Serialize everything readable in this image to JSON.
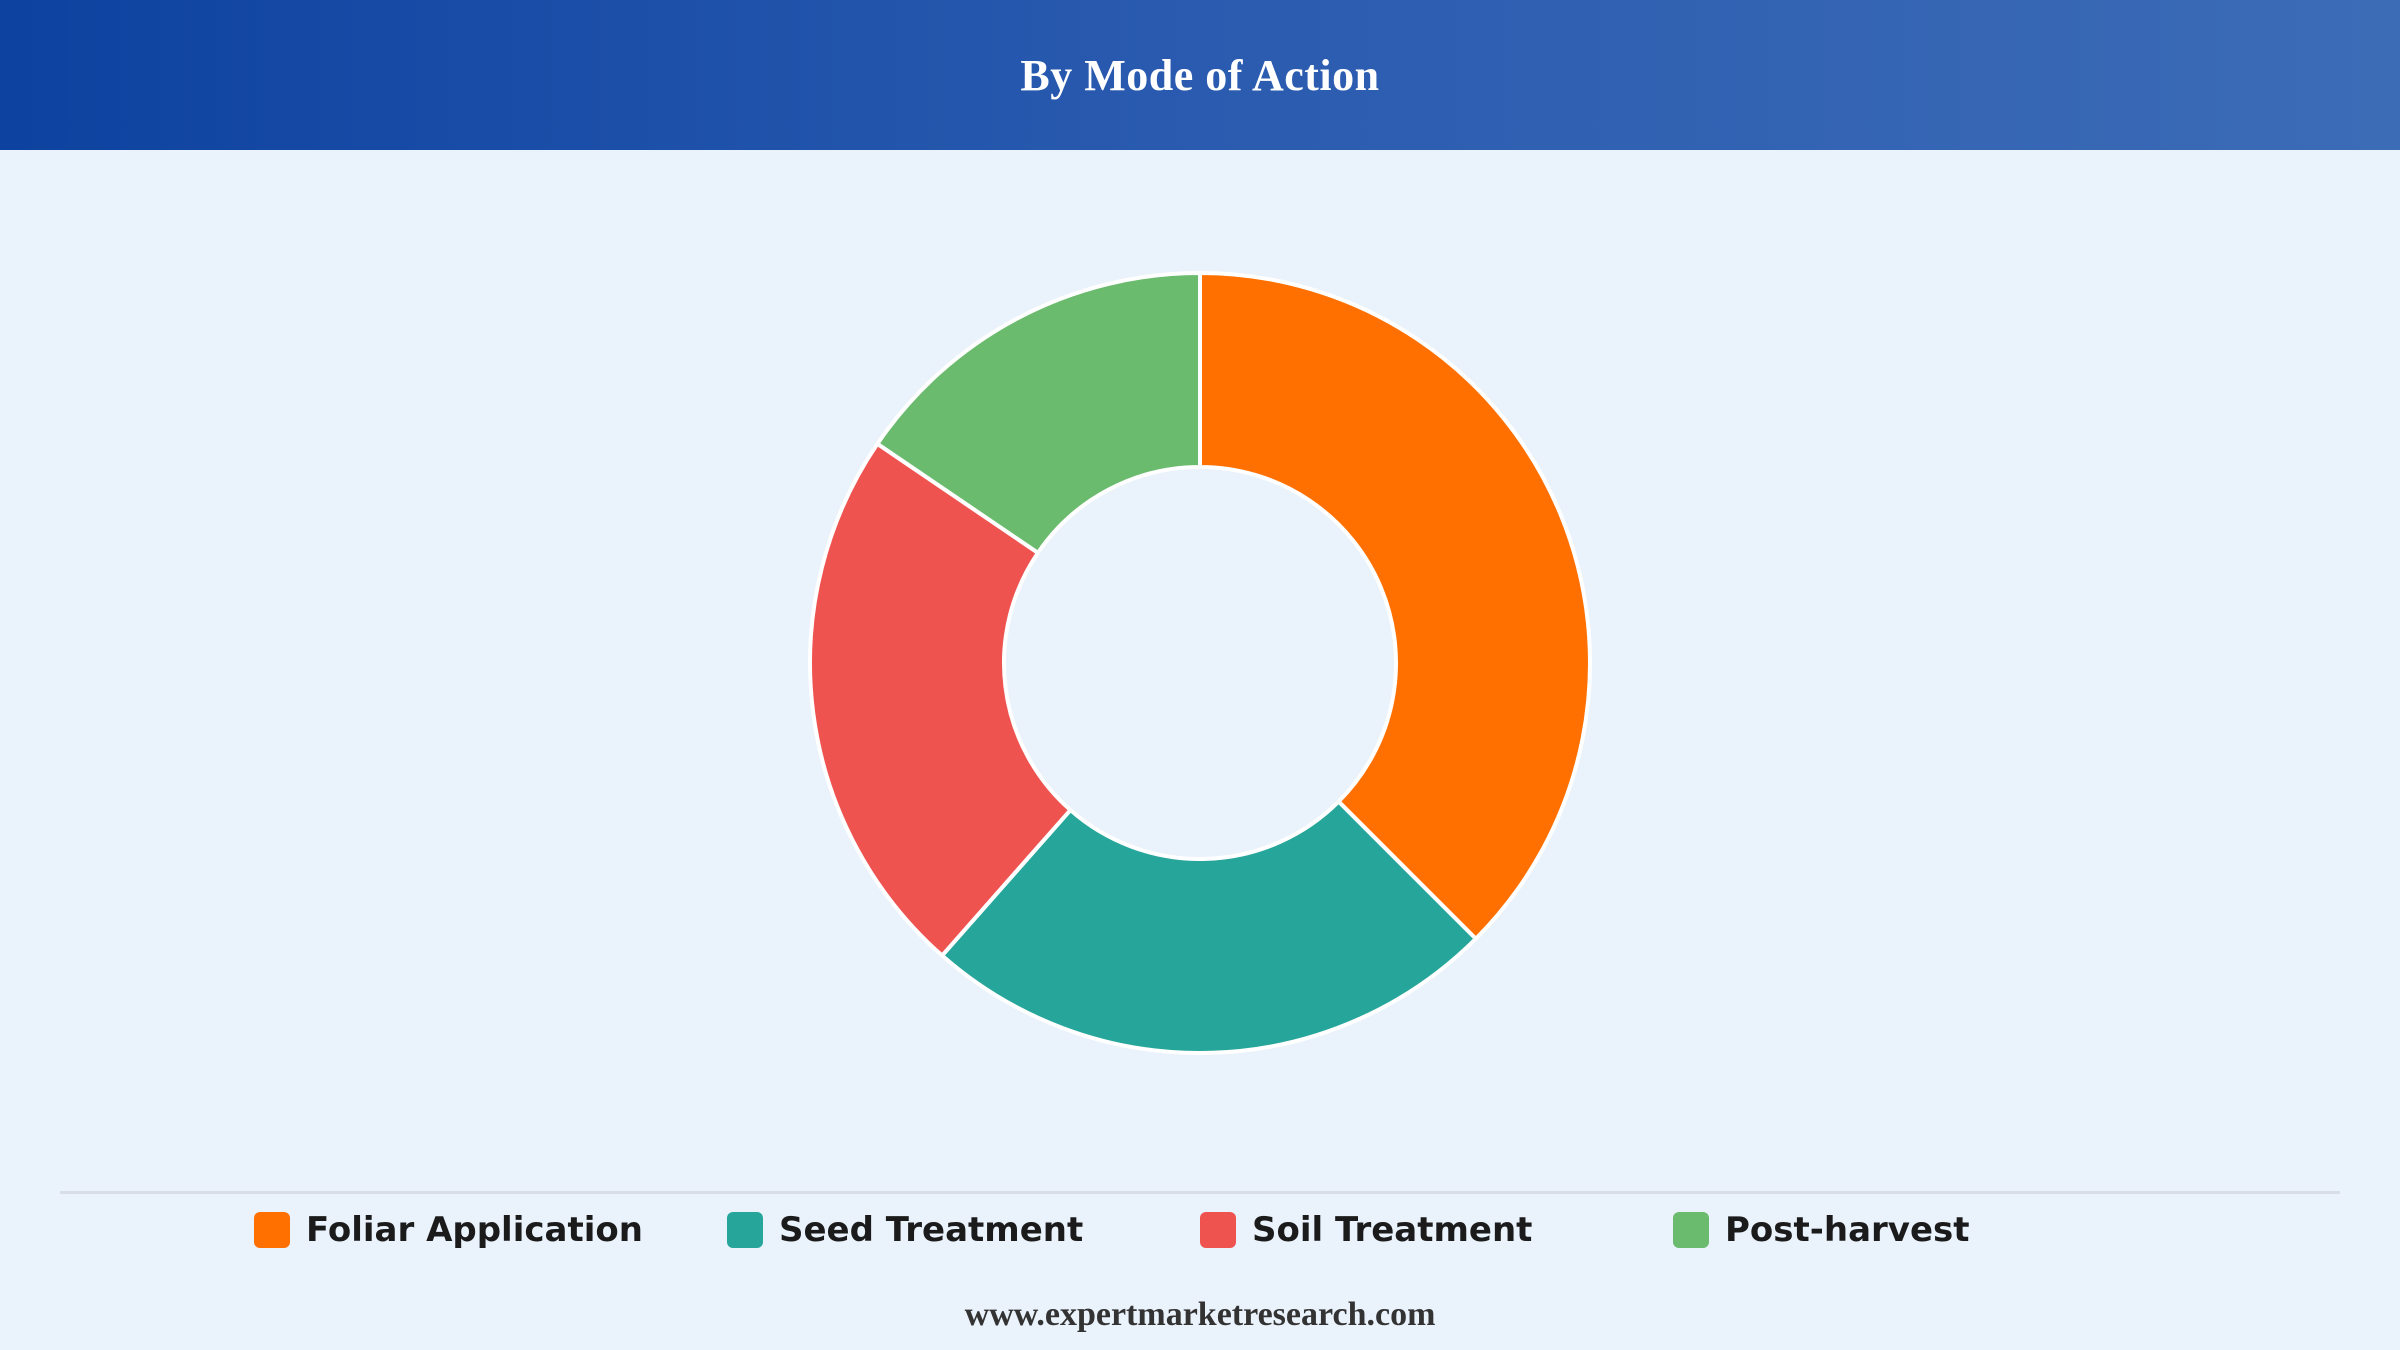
{
  "header": {
    "title": "By Mode of Action"
  },
  "chart_data": {
    "type": "pie",
    "style": "donut",
    "title": "By Mode of Action",
    "categories": [
      "Foliar Application",
      "Seed Treatment",
      "Soil Treatment",
      "Post-harvest"
    ],
    "values": [
      37.5,
      24.0,
      23.0,
      15.5
    ],
    "colors": [
      "#ff7000",
      "#26a69a",
      "#ef5350",
      "#6abb6d"
    ],
    "legend_position": "bottom"
  },
  "legend": {
    "items": [
      {
        "label": "Foliar Application",
        "color": "#ff7000"
      },
      {
        "label": "Seed Treatment",
        "color": "#26a69a"
      },
      {
        "label": "Soil Treatment",
        "color": "#ef5350"
      },
      {
        "label": "Post-harvest",
        "color": "#6abb6d"
      }
    ]
  },
  "footer": {
    "website": "www.expertmarketresearch.com"
  }
}
